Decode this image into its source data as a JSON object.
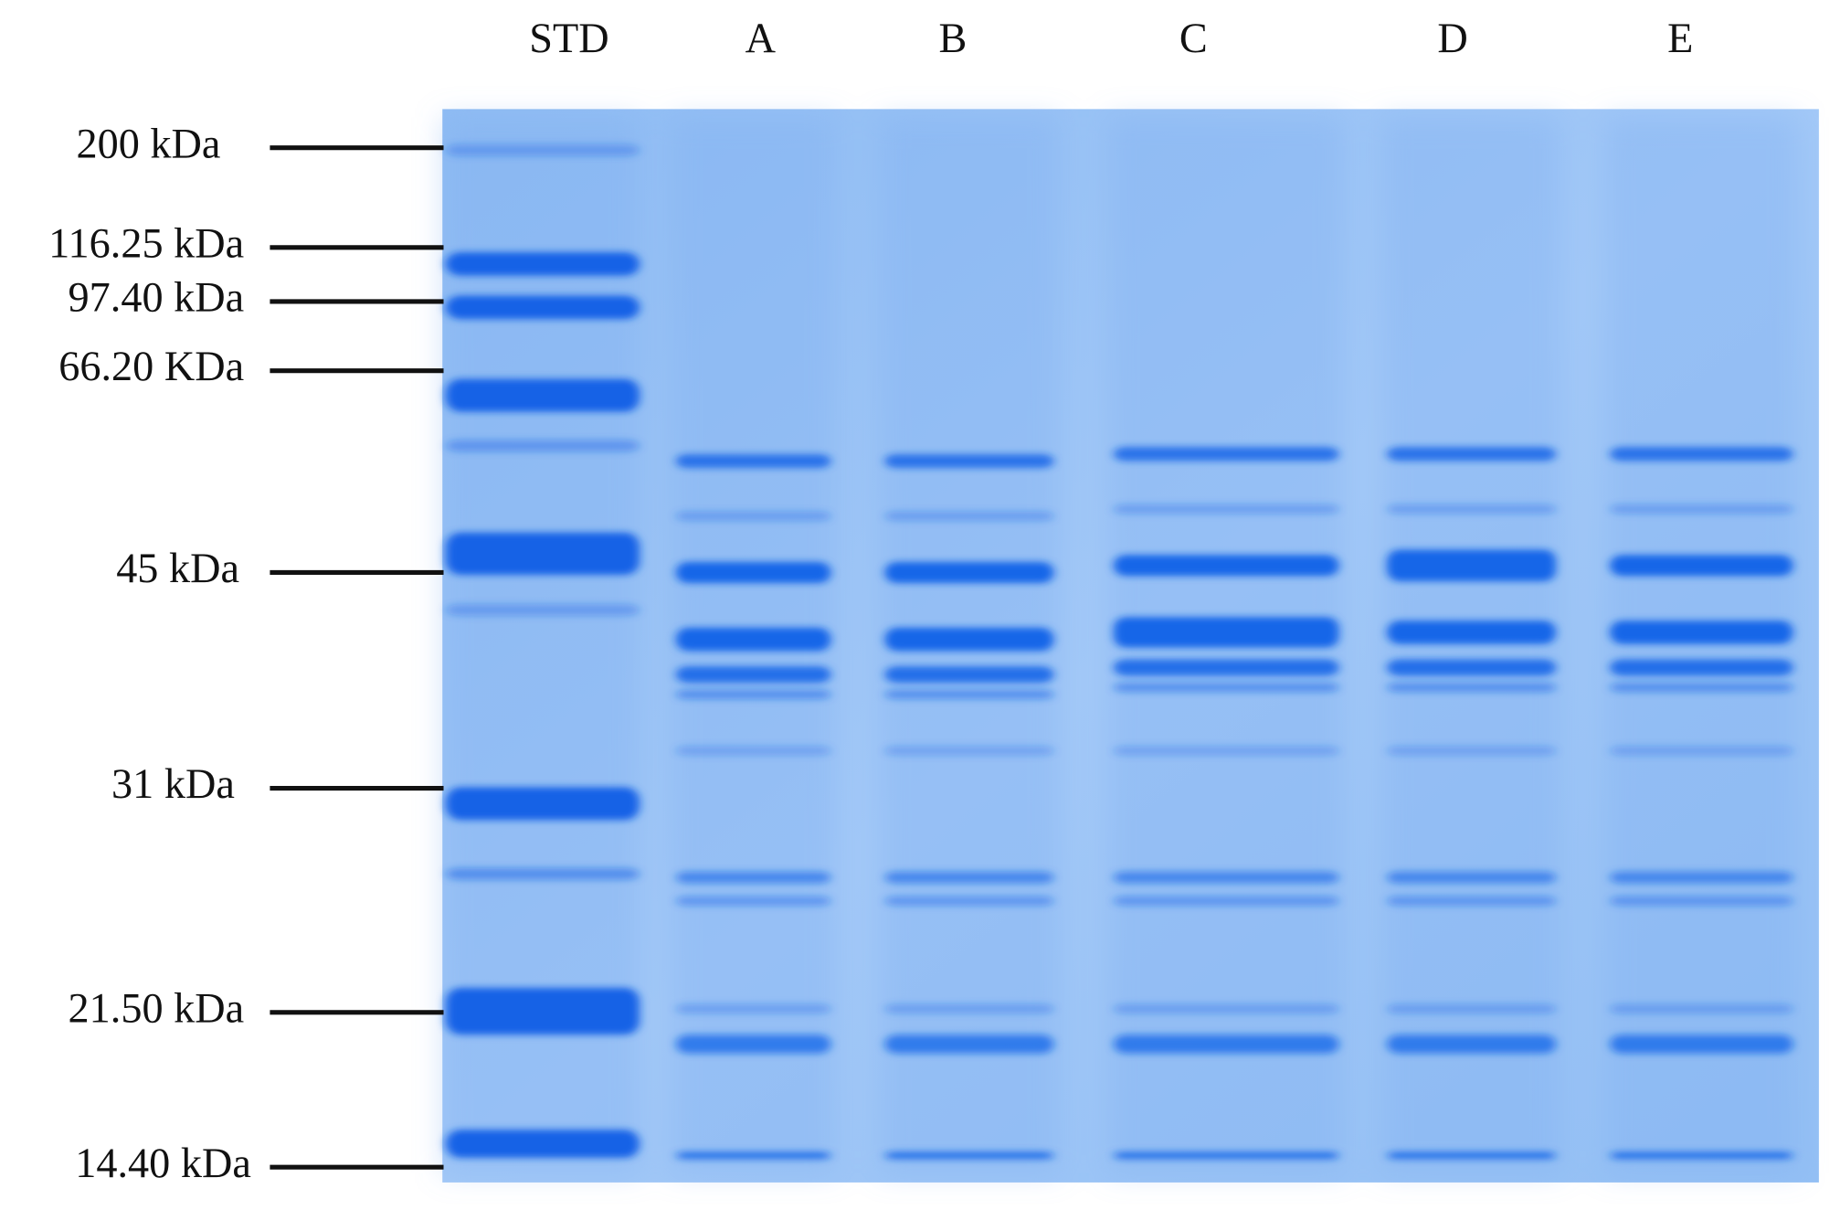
{
  "lanes": [
    "STD",
    "A",
    "B",
    "C",
    "D",
    "E"
  ],
  "markers": [
    "200 kDa",
    "116.25 kDa",
    "97.40 kDa",
    "66.20 KDa",
    "45 kDa",
    "31 kDa",
    "21.50 kDa",
    "14.40 kDa"
  ]
}
